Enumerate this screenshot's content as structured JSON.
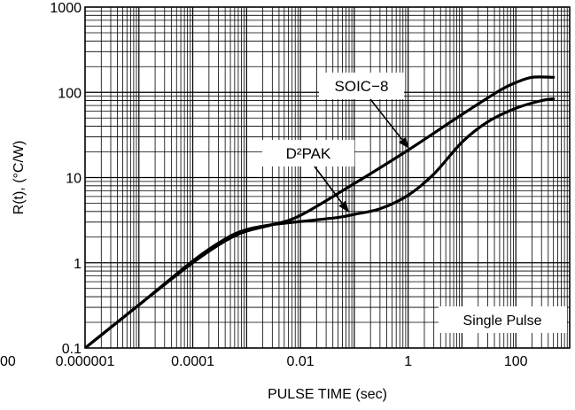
{
  "chart_data": {
    "type": "line",
    "xlabel": "PULSE TIME (sec)",
    "ylabel": "R(t), (°C/W)",
    "x_scale": "log",
    "y_scale": "log",
    "xlim": [
      1e-06,
      1000
    ],
    "ylim": [
      0.1,
      1000
    ],
    "grid": true,
    "x_tick_labels": [
      {
        "value": 1e-06,
        "label": "0.000001"
      },
      {
        "value": 0.0001,
        "label": "0.0001"
      },
      {
        "value": 0.01,
        "label": "0.01"
      },
      {
        "value": 1,
        "label": "1"
      },
      {
        "value": 100,
        "label": "100"
      }
    ],
    "partial_left_label": "00",
    "y_tick_labels": [
      {
        "value": 0.1,
        "label": "0.1"
      },
      {
        "value": 1,
        "label": "1"
      },
      {
        "value": 10,
        "label": "10"
      },
      {
        "value": 100,
        "label": "100"
      },
      {
        "value": 1000,
        "label": "1000"
      }
    ],
    "annotations": [
      {
        "text": "SOIC−8"
      },
      {
        "text": "D²PAK"
      },
      {
        "text": "Single Pulse"
      }
    ],
    "series": [
      {
        "name": "SOIC−8",
        "points": [
          [
            1e-06,
            0.1
          ],
          [
            1e-05,
            0.32
          ],
          [
            0.0001,
            1.0
          ],
          [
            0.0004,
            1.8
          ],
          [
            0.001,
            2.35
          ],
          [
            0.003,
            2.8
          ],
          [
            0.01,
            3.6
          ],
          [
            0.1,
            8.5
          ],
          [
            1,
            21
          ],
          [
            10,
            55
          ],
          [
            50,
            105
          ],
          [
            100,
            130
          ],
          [
            200,
            150
          ],
          [
            500,
            150
          ]
        ]
      },
      {
        "name": "D²PAK",
        "points": [
          [
            1e-06,
            0.1
          ],
          [
            1e-05,
            0.32
          ],
          [
            0.0001,
            1.05
          ],
          [
            0.0004,
            1.9
          ],
          [
            0.001,
            2.45
          ],
          [
            0.003,
            2.8
          ],
          [
            0.01,
            3.05
          ],
          [
            0.05,
            3.4
          ],
          [
            0.1,
            3.7
          ],
          [
            0.3,
            4.3
          ],
          [
            1,
            6.2
          ],
          [
            3,
            11
          ],
          [
            10,
            26
          ],
          [
            30,
            45
          ],
          [
            100,
            65
          ],
          [
            300,
            80
          ],
          [
            500,
            84
          ]
        ]
      }
    ]
  }
}
